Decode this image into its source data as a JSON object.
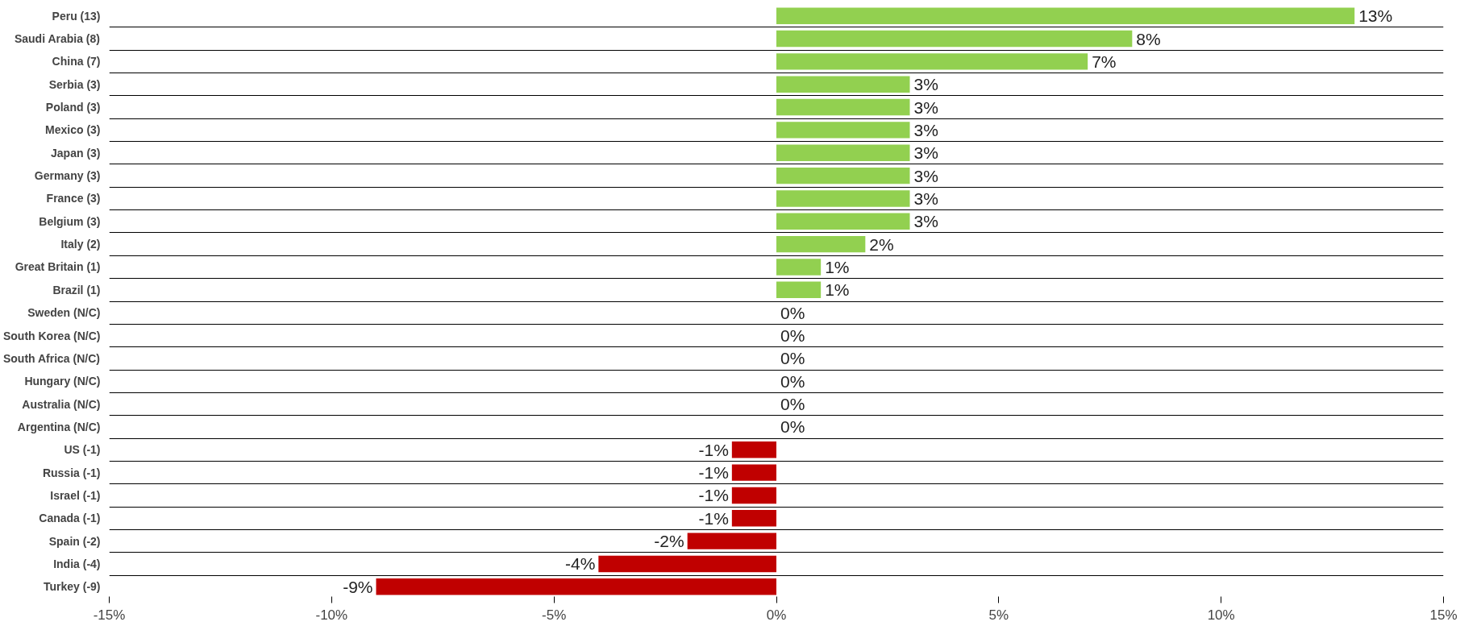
{
  "chart_data": {
    "type": "bar",
    "orientation": "horizontal",
    "categories": [
      "Peru (13)",
      "Saudi Arabia (8)",
      "China (7)",
      "Serbia (3)",
      "Poland (3)",
      "Mexico (3)",
      "Japan (3)",
      "Germany (3)",
      "France (3)",
      "Belgium (3)",
      "Italy (2)",
      "Great Britain (1)",
      "Brazil (1)",
      "Sweden (N/C)",
      "South Korea (N/C)",
      "South Africa (N/C)",
      "Hungary (N/C)",
      "Australia (N/C)",
      "Argentina (N/C)",
      "US (-1)",
      "Russia (-1)",
      "Israel (-1)",
      "Canada (-1)",
      "Spain (-2)",
      "India (-4)",
      "Turkey (-9)"
    ],
    "values": [
      13,
      8,
      7,
      3,
      3,
      3,
      3,
      3,
      3,
      3,
      2,
      1,
      1,
      0,
      0,
      0,
      0,
      0,
      0,
      -1,
      -1,
      -1,
      -1,
      -2,
      -4,
      -9
    ],
    "colors": [
      "#92d050",
      "#92d050",
      "#92d050",
      "#92d050",
      "#92d050",
      "#92d050",
      "#92d050",
      "#92d050",
      "#92d050",
      "#92d050",
      "#92d050",
      "#92d050",
      "#92d050",
      "#92d050",
      "#92d050",
      "#92d050",
      "#92d050",
      "#92d050",
      "#92d050",
      "#c00000",
      "#c00000",
      "#c00000",
      "#c00000",
      "#c00000",
      "#c00000",
      "#c00000"
    ],
    "value_labels": [
      "13%",
      "8%",
      "7%",
      "3%",
      "3%",
      "3%",
      "3%",
      "3%",
      "3%",
      "3%",
      "2%",
      "1%",
      "1%",
      "0%",
      "0%",
      "0%",
      "0%",
      "0%",
      "0%",
      "-1%",
      "-1%",
      "-1%",
      "-1%",
      "-2%",
      "-4%",
      "-9%"
    ],
    "xlim": [
      -15,
      15
    ],
    "xticks": [
      {
        "value": -15,
        "label": "-15%"
      },
      {
        "value": -10,
        "label": "-10%"
      },
      {
        "value": -5,
        "label": "-5%"
      },
      {
        "value": 0,
        "label": "0%"
      },
      {
        "value": 5,
        "label": "5%"
      },
      {
        "value": 10,
        "label": "10%"
      },
      {
        "value": 15,
        "label": "15%"
      }
    ],
    "grid": "y"
  }
}
